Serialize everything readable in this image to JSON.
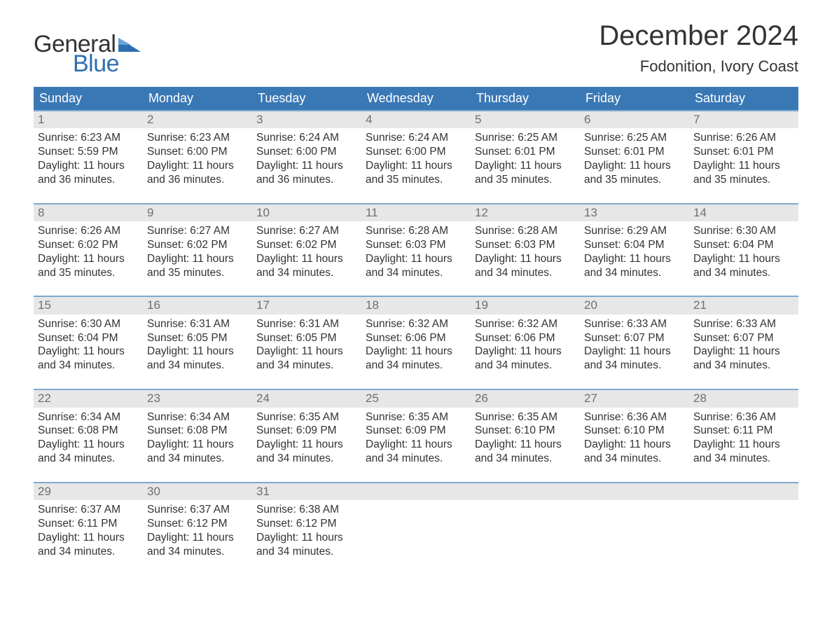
{
  "brand": {
    "word1": "General",
    "word2": "Blue",
    "color_text": "#333333",
    "color_accent": "#2f6fb0"
  },
  "title": "December 2024",
  "location": "Fodonition, Ivory Coast",
  "colors": {
    "header_bg": "#3a78b5",
    "header_text": "#ffffff",
    "row_divider": "#7da9cf",
    "daynum_bg": "#e7e7e7",
    "daynum_text": "#6f6f6f",
    "body_text": "#333333",
    "page_bg": "#ffffff"
  },
  "typography": {
    "title_fontsize_pt": 30,
    "location_fontsize_pt": 16,
    "dow_fontsize_pt": 14,
    "daynum_fontsize_pt": 13,
    "body_fontsize_pt": 12,
    "logo_fontsize_pt": 26
  },
  "days_of_week": [
    "Sunday",
    "Monday",
    "Tuesday",
    "Wednesday",
    "Thursday",
    "Friday",
    "Saturday"
  ],
  "label_sunrise": "Sunrise:",
  "label_sunset": "Sunset:",
  "label_daylight": "Daylight:",
  "weeks": [
    [
      {
        "n": "1",
        "sunrise": "6:23 AM",
        "sunset": "5:59 PM",
        "daylight": "11 hours and 36 minutes."
      },
      {
        "n": "2",
        "sunrise": "6:23 AM",
        "sunset": "6:00 PM",
        "daylight": "11 hours and 36 minutes."
      },
      {
        "n": "3",
        "sunrise": "6:24 AM",
        "sunset": "6:00 PM",
        "daylight": "11 hours and 36 minutes."
      },
      {
        "n": "4",
        "sunrise": "6:24 AM",
        "sunset": "6:00 PM",
        "daylight": "11 hours and 35 minutes."
      },
      {
        "n": "5",
        "sunrise": "6:25 AM",
        "sunset": "6:01 PM",
        "daylight": "11 hours and 35 minutes."
      },
      {
        "n": "6",
        "sunrise": "6:25 AM",
        "sunset": "6:01 PM",
        "daylight": "11 hours and 35 minutes."
      },
      {
        "n": "7",
        "sunrise": "6:26 AM",
        "sunset": "6:01 PM",
        "daylight": "11 hours and 35 minutes."
      }
    ],
    [
      {
        "n": "8",
        "sunrise": "6:26 AM",
        "sunset": "6:02 PM",
        "daylight": "11 hours and 35 minutes."
      },
      {
        "n": "9",
        "sunrise": "6:27 AM",
        "sunset": "6:02 PM",
        "daylight": "11 hours and 35 minutes."
      },
      {
        "n": "10",
        "sunrise": "6:27 AM",
        "sunset": "6:02 PM",
        "daylight": "11 hours and 34 minutes."
      },
      {
        "n": "11",
        "sunrise": "6:28 AM",
        "sunset": "6:03 PM",
        "daylight": "11 hours and 34 minutes."
      },
      {
        "n": "12",
        "sunrise": "6:28 AM",
        "sunset": "6:03 PM",
        "daylight": "11 hours and 34 minutes."
      },
      {
        "n": "13",
        "sunrise": "6:29 AM",
        "sunset": "6:04 PM",
        "daylight": "11 hours and 34 minutes."
      },
      {
        "n": "14",
        "sunrise": "6:30 AM",
        "sunset": "6:04 PM",
        "daylight": "11 hours and 34 minutes."
      }
    ],
    [
      {
        "n": "15",
        "sunrise": "6:30 AM",
        "sunset": "6:04 PM",
        "daylight": "11 hours and 34 minutes."
      },
      {
        "n": "16",
        "sunrise": "6:31 AM",
        "sunset": "6:05 PM",
        "daylight": "11 hours and 34 minutes."
      },
      {
        "n": "17",
        "sunrise": "6:31 AM",
        "sunset": "6:05 PM",
        "daylight": "11 hours and 34 minutes."
      },
      {
        "n": "18",
        "sunrise": "6:32 AM",
        "sunset": "6:06 PM",
        "daylight": "11 hours and 34 minutes."
      },
      {
        "n": "19",
        "sunrise": "6:32 AM",
        "sunset": "6:06 PM",
        "daylight": "11 hours and 34 minutes."
      },
      {
        "n": "20",
        "sunrise": "6:33 AM",
        "sunset": "6:07 PM",
        "daylight": "11 hours and 34 minutes."
      },
      {
        "n": "21",
        "sunrise": "6:33 AM",
        "sunset": "6:07 PM",
        "daylight": "11 hours and 34 minutes."
      }
    ],
    [
      {
        "n": "22",
        "sunrise": "6:34 AM",
        "sunset": "6:08 PM",
        "daylight": "11 hours and 34 minutes."
      },
      {
        "n": "23",
        "sunrise": "6:34 AM",
        "sunset": "6:08 PM",
        "daylight": "11 hours and 34 minutes."
      },
      {
        "n": "24",
        "sunrise": "6:35 AM",
        "sunset": "6:09 PM",
        "daylight": "11 hours and 34 minutes."
      },
      {
        "n": "25",
        "sunrise": "6:35 AM",
        "sunset": "6:09 PM",
        "daylight": "11 hours and 34 minutes."
      },
      {
        "n": "26",
        "sunrise": "6:35 AM",
        "sunset": "6:10 PM",
        "daylight": "11 hours and 34 minutes."
      },
      {
        "n": "27",
        "sunrise": "6:36 AM",
        "sunset": "6:10 PM",
        "daylight": "11 hours and 34 minutes."
      },
      {
        "n": "28",
        "sunrise": "6:36 AM",
        "sunset": "6:11 PM",
        "daylight": "11 hours and 34 minutes."
      }
    ],
    [
      {
        "n": "29",
        "sunrise": "6:37 AM",
        "sunset": "6:11 PM",
        "daylight": "11 hours and 34 minutes."
      },
      {
        "n": "30",
        "sunrise": "6:37 AM",
        "sunset": "6:12 PM",
        "daylight": "11 hours and 34 minutes."
      },
      {
        "n": "31",
        "sunrise": "6:38 AM",
        "sunset": "6:12 PM",
        "daylight": "11 hours and 34 minutes."
      },
      null,
      null,
      null,
      null
    ]
  ]
}
